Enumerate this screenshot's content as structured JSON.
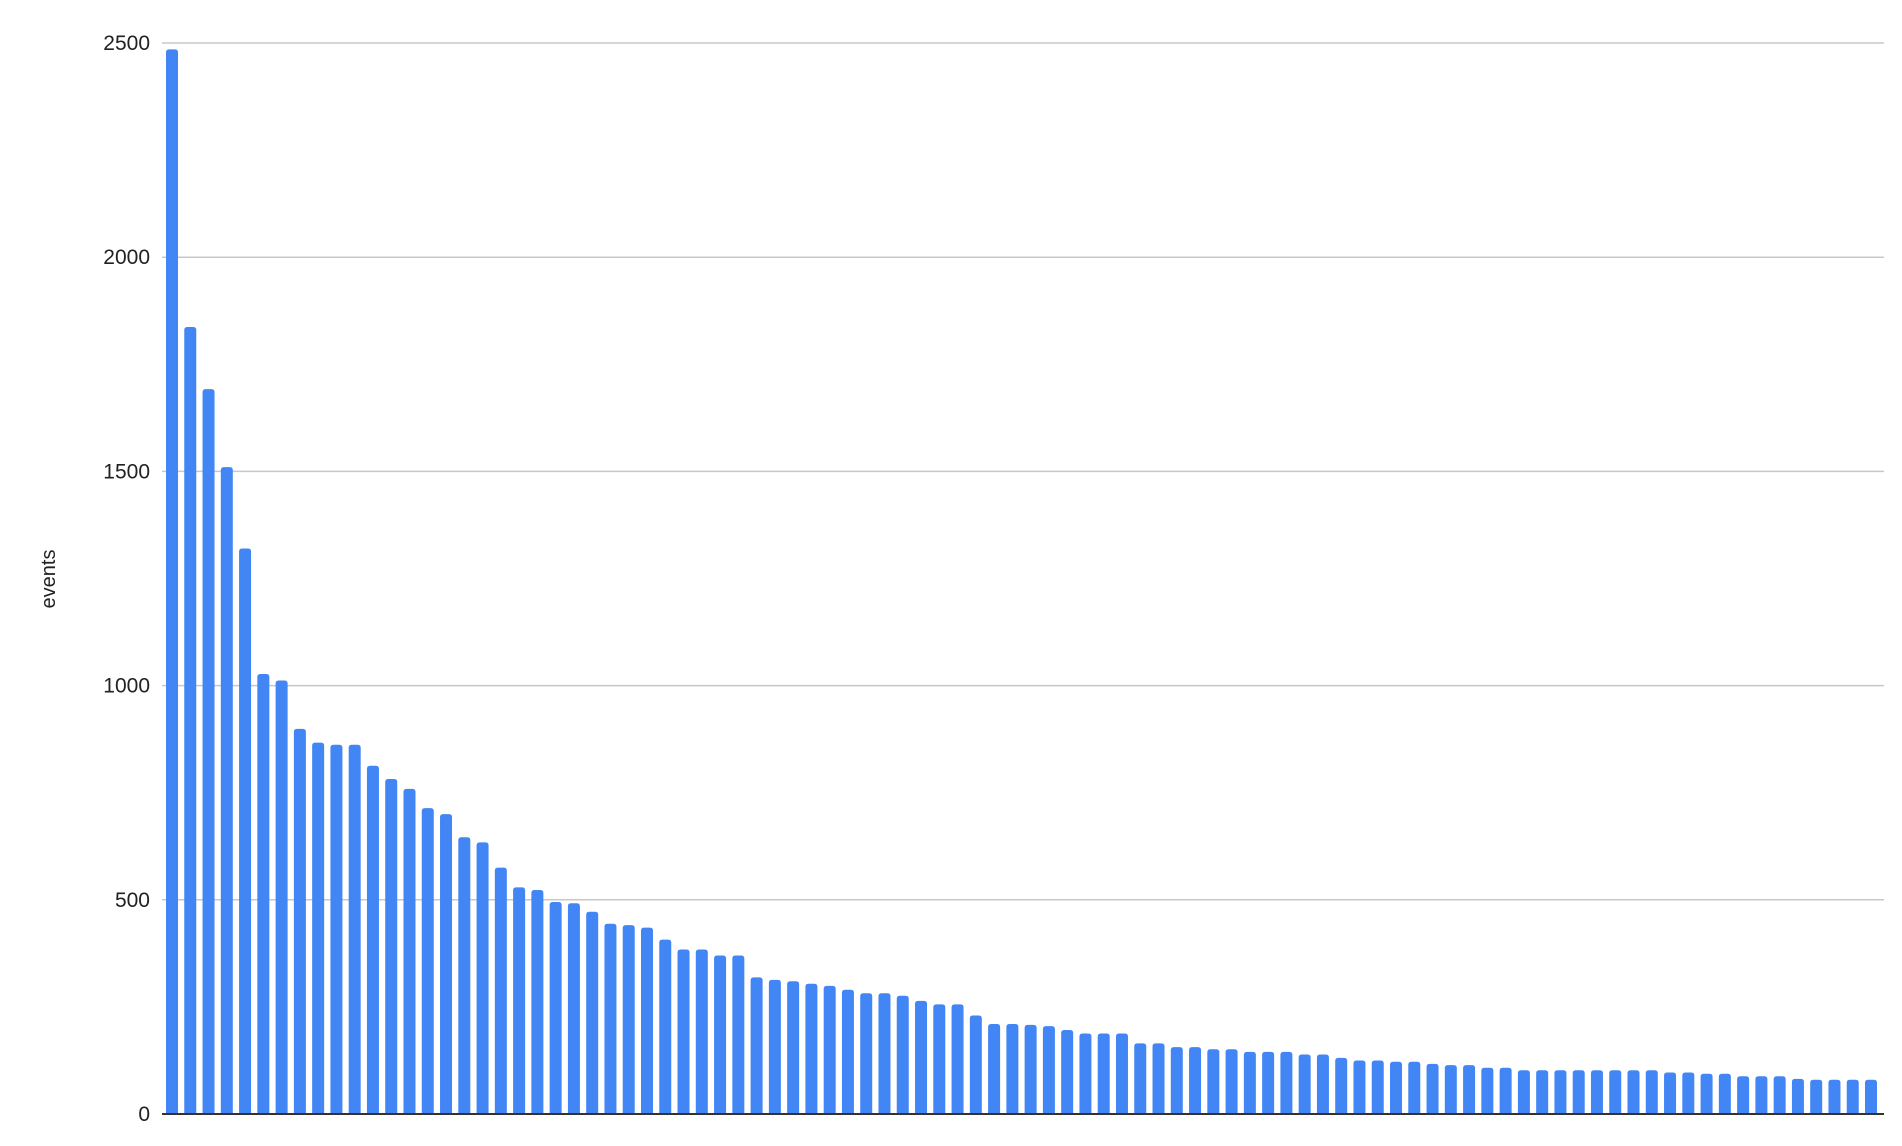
{
  "chart_data": {
    "type": "bar",
    "title": "",
    "xlabel": "",
    "ylabel": "events",
    "ylim": [
      0,
      2500
    ],
    "yticks": [
      "0",
      "500",
      "1000",
      "1500",
      "2000",
      "2500"
    ],
    "grid": true,
    "bar_color": "#4285f4",
    "values": [
      2485,
      1837,
      1692,
      1510,
      1320,
      1027,
      1012,
      899,
      867,
      862,
      862,
      813,
      782,
      759,
      714,
      700,
      646,
      634,
      575,
      529,
      523,
      495,
      492,
      472,
      444,
      441,
      435,
      407,
      384,
      384,
      370,
      370,
      319,
      313,
      310,
      304,
      299,
      290,
      282,
      282,
      276,
      264,
      256,
      256,
      230,
      210,
      210,
      208,
      205,
      196,
      188,
      188,
      188,
      165,
      165,
      156,
      156,
      151,
      151,
      145,
      145,
      145,
      139,
      139,
      131,
      125,
      125,
      122,
      122,
      117,
      114,
      114,
      108,
      108,
      102,
      102,
      102,
      102,
      102,
      102,
      102,
      102,
      97,
      97,
      94,
      94,
      88,
      88,
      88,
      82,
      80,
      80,
      80,
      80
    ]
  }
}
